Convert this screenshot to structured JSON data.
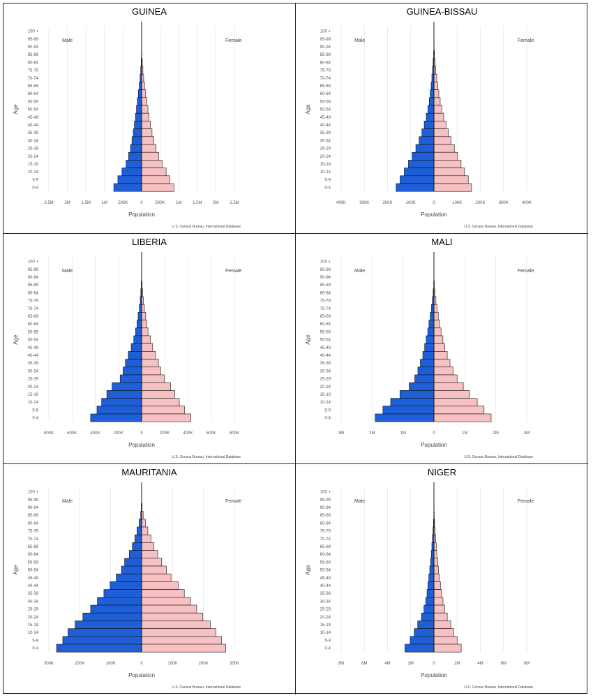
{
  "chart_data": [
    {
      "type": "bar",
      "title": "GUINEA",
      "age_groups": [
        "100 +",
        "95-99",
        "90-94",
        "85-89",
        "80-84",
        "75-79",
        "70-74",
        "65-69",
        "60-64",
        "55-59",
        "50-54",
        "45-49",
        "40-44",
        "35-39",
        "30-34",
        "25-29",
        "20-24",
        "15-19",
        "10-14",
        "5-9",
        "0-4"
      ],
      "series": [
        {
          "name": "Male",
          "values": [
            0,
            0,
            1000,
            4000,
            12000,
            25000,
            40000,
            65000,
            90000,
            115000,
            140000,
            165000,
            195000,
            225000,
            260000,
            300000,
            350000,
            420000,
            530000,
            640000,
            750000
          ]
        },
        {
          "name": "Female",
          "values": [
            0,
            0,
            2000,
            6000,
            18000,
            35000,
            55000,
            80000,
            110000,
            140000,
            170000,
            200000,
            240000,
            280000,
            330000,
            390000,
            460000,
            550000,
            660000,
            760000,
            870000
          ]
        }
      ],
      "axis_max": 2500000,
      "x_ticks": [
        "2.5M",
        "2M",
        "1.5M",
        "1M",
        "500K",
        "0",
        "500K",
        "1M",
        "1.5M",
        "2M",
        "2.5M"
      ],
      "xlabel": "Population",
      "ylabel": "Age",
      "male_label": "Male",
      "female_label": "Female",
      "source": "U.S. Census Bureau, International Database"
    },
    {
      "type": "bar",
      "title": "GUINEA-BISSAU",
      "age_groups": [
        "100 +",
        "95-99",
        "90-94",
        "85-89",
        "80-84",
        "75-79",
        "70-74",
        "65-69",
        "60-64",
        "55-59",
        "50-54",
        "45-49",
        "40-44",
        "35-39",
        "30-34",
        "25-29",
        "20-24",
        "15-19",
        "10-14",
        "5-9",
        "0-4"
      ],
      "series": [
        {
          "name": "Male",
          "values": [
            0,
            0,
            500,
            1500,
            3500,
            6000,
            9000,
            12000,
            16000,
            20000,
            26000,
            33000,
            42000,
            52000,
            64000,
            78000,
            94000,
            110000,
            128000,
            146000,
            163000
          ]
        },
        {
          "name": "Female",
          "values": [
            0,
            0,
            800,
            2200,
            5000,
            8000,
            12000,
            16000,
            21000,
            27000,
            34000,
            42000,
            52000,
            62000,
            74000,
            88000,
            102000,
            117000,
            132000,
            148000,
            162000
          ]
        }
      ],
      "axis_max": 400000,
      "x_ticks": [
        "400K",
        "300K",
        "200K",
        "100K",
        "0",
        "100K",
        "200K",
        "300K",
        "400K"
      ],
      "xlabel": "Population",
      "ylabel": "Age",
      "male_label": "Male",
      "female_label": "Female",
      "source": "U.S. Census Bureau, International Database"
    },
    {
      "type": "bar",
      "title": "LIBERIA",
      "age_groups": [
        "100 +",
        "95-99",
        "90-94",
        "85-89",
        "80-84",
        "75-79",
        "70-74",
        "65-69",
        "60-64",
        "55-59",
        "50-54",
        "45-49",
        "40-44",
        "35-39",
        "30-34",
        "25-29",
        "20-24",
        "15-19",
        "10-14",
        "5-9",
        "0-4"
      ],
      "series": [
        {
          "name": "Male",
          "values": [
            0,
            0,
            1000,
            3000,
            7000,
            12000,
            20000,
            30000,
            40000,
            52000,
            68000,
            90000,
            115000,
            140000,
            160000,
            185000,
            255000,
            300000,
            345000,
            385000,
            440000
          ]
        },
        {
          "name": "Female",
          "values": [
            0,
            0,
            1500,
            4000,
            9000,
            15000,
            24000,
            35000,
            45000,
            55000,
            75000,
            95000,
            120000,
            145000,
            165000,
            195000,
            250000,
            285000,
            325000,
            370000,
            425000
          ]
        }
      ],
      "axis_max": 800000,
      "x_ticks": [
        "800K",
        "600K",
        "400K",
        "200K",
        "0",
        "200K",
        "400K",
        "600K",
        "800K"
      ],
      "xlabel": "Population",
      "ylabel": "Age",
      "male_label": "Male",
      "female_label": "Female",
      "source": "U.S. Census Bureau, International Database"
    },
    {
      "type": "bar",
      "title": "MALI",
      "age_groups": [
        "100 +",
        "95-99",
        "90-94",
        "85-89",
        "80-84",
        "75-79",
        "70-74",
        "65-69",
        "60-64",
        "55-59",
        "50-54",
        "45-49",
        "40-44",
        "35-39",
        "30-34",
        "25-29",
        "20-24",
        "15-19",
        "10-14",
        "5-9",
        "0-4"
      ],
      "series": [
        {
          "name": "Male",
          "values": [
            0,
            0,
            2000,
            8000,
            25000,
            50000,
            80000,
            120000,
            160000,
            200000,
            250000,
            300000,
            360000,
            440000,
            520000,
            620000,
            800000,
            1100000,
            1400000,
            1650000,
            1900000
          ]
        },
        {
          "name": "Female",
          "values": [
            0,
            0,
            3000,
            12000,
            35000,
            65000,
            100000,
            140000,
            180000,
            230000,
            290000,
            350000,
            430000,
            520000,
            620000,
            750000,
            950000,
            1150000,
            1400000,
            1620000,
            1850000
          ]
        }
      ],
      "axis_max": 3000000,
      "x_ticks": [
        "3M",
        "2M",
        "1M",
        "0",
        "1M",
        "2M",
        "3M"
      ],
      "xlabel": "Population",
      "ylabel": "Age",
      "male_label": "Male",
      "female_label": "Female",
      "source": "U.S. Census Bureau, International Database"
    },
    {
      "type": "bar",
      "title": "MAURITANIA",
      "age_groups": [
        "100 +",
        "95-99",
        "90-94",
        "85-89",
        "80-84",
        "75-79",
        "70-74",
        "65-69",
        "60-64",
        "55-59",
        "50-54",
        "45-49",
        "40-44",
        "35-39",
        "30-34",
        "25-29",
        "20-24",
        "15-19",
        "10-14",
        "5-9",
        "0-4"
      ],
      "series": [
        {
          "name": "Male",
          "values": [
            0,
            0,
            1000,
            3000,
            8000,
            15000,
            22000,
            30000,
            40000,
            55000,
            65000,
            82000,
            102000,
            122000,
            143000,
            165000,
            190000,
            215000,
            238000,
            255000,
            275000
          ]
        },
        {
          "name": "Female",
          "values": [
            0,
            0,
            1500,
            5000,
            12000,
            20000,
            30000,
            40000,
            52000,
            65000,
            80000,
            95000,
            118000,
            138000,
            158000,
            178000,
            198000,
            222000,
            240000,
            258000,
            272000
          ]
        }
      ],
      "axis_max": 300000,
      "x_ticks": [
        "300K",
        "200K",
        "100K",
        "0",
        "100K",
        "200K",
        "300K"
      ],
      "xlabel": "Population",
      "ylabel": "Age",
      "male_label": "Male",
      "female_label": "Female",
      "source": "U.S. Census Bureau, International Database"
    },
    {
      "type": "bar",
      "title": "NIGER",
      "age_groups": [
        "100 +",
        "95-99",
        "90-94",
        "85-89",
        "80-84",
        "75-79",
        "70-74",
        "65-69",
        "60-64",
        "55-59",
        "50-54",
        "45-49",
        "40-44",
        "35-39",
        "30-34",
        "25-29",
        "20-24",
        "15-19",
        "10-14",
        "5-9",
        "0-4"
      ],
      "series": [
        {
          "name": "Male",
          "values": [
            0,
            0,
            5000,
            15000,
            40000,
            80000,
            130000,
            180000,
            230000,
            290000,
            360000,
            440000,
            520000,
            600000,
            700000,
            860000,
            1080000,
            1400000,
            1700000,
            2050000,
            2500000
          ]
        },
        {
          "name": "Female",
          "values": [
            0,
            0,
            8000,
            22000,
            55000,
            95000,
            150000,
            200000,
            250000,
            320000,
            390000,
            470000,
            560000,
            660000,
            780000,
            920000,
            1150000,
            1450000,
            1700000,
            2000000,
            2350000
          ]
        }
      ],
      "axis_max": 8000000,
      "x_ticks": [
        "8M",
        "6M",
        "4M",
        "2M",
        "0",
        "2M",
        "4M",
        "6M",
        "8M"
      ],
      "xlabel": "Population",
      "ylabel": "Age",
      "male_label": "Male",
      "female_label": "Female",
      "source": "U.S. Census Bureau, International Database"
    }
  ]
}
